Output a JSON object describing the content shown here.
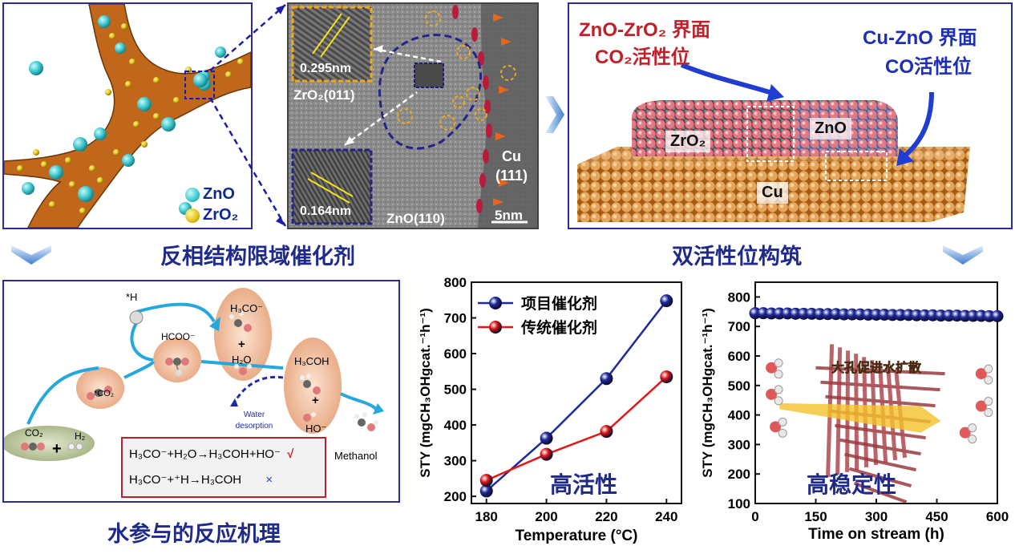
{
  "captions": {
    "reverse_phase": "反相结构限域催化剂",
    "dual_sites": "双活性位构筑",
    "mechanism": "水参与的反应机理"
  },
  "schematic": {
    "legend_zno": "ZnO",
    "legend_zro2": "ZrO₂"
  },
  "tem": {
    "d1": "0.295nm",
    "plane1": "ZrO₂(011)",
    "d2": "0.164nm",
    "plane2": "ZnO(110)",
    "cu_label": "Cu",
    "cu_plane": "(111)",
    "scale": "5nm"
  },
  "interface": {
    "znzr_title": "ZnO-ZrO₂ 界面",
    "znzr_site": "CO₂活性位",
    "cuzn_title": "Cu-ZnO 界面",
    "cuzn_site": "CO活性位",
    "label_zro2": "ZrO₂",
    "label_zno": "ZnO",
    "label_cu": "Cu"
  },
  "mechanism": {
    "h_star": "*H",
    "hcoo": "HCOO⁻",
    "h3co": "H₃CO⁻",
    "plus": "+",
    "h2o": "H₂O",
    "h3coh": "H₃COH",
    "ho": "HO⁻",
    "co2_star": "*CO₂",
    "water_desorption": "Water desorption",
    "co2": "CO₂",
    "h2": "H₂",
    "methanol": "Methanol",
    "eq1": "H₃CO⁻+H₂O→H₃COH+HO⁻",
    "eq1_mark": "√",
    "eq2": "H₃CO⁻+⁺H→H₃COH",
    "eq2_mark": "×"
  },
  "colors": {
    "frame": "#2b2b9a",
    "caption": "#1f2a8a",
    "series_project": "#1f2a9a",
    "series_traditional": "#e01818",
    "interface_red": "#c0202a",
    "interface_blue": "#1d2fb5"
  },
  "chart_data": [
    {
      "type": "line",
      "ylabel": "STY (mgCH₃OHgcat.⁻¹h⁻¹)",
      "xlabel": "Temperature (°C)",
      "annotation": "高活性",
      "x": [
        180,
        200,
        220,
        240
      ],
      "xticks": [
        "180",
        "200",
        "220",
        "240"
      ],
      "yticks": [
        "200",
        "300",
        "400",
        "500",
        "600",
        "700",
        "800"
      ],
      "xlim": [
        175,
        245
      ],
      "ylim": [
        180,
        800
      ],
      "legend_position": "top-left",
      "series": [
        {
          "name": "项目催化剂",
          "values": [
            215,
            363,
            530,
            748
          ],
          "color": "#1f2a9a"
        },
        {
          "name": "传统催化剂",
          "values": [
            245,
            318,
            382,
            535
          ],
          "color": "#e01818"
        }
      ]
    },
    {
      "type": "scatter",
      "ylabel": "STY (mgCH₃OHgcat.⁻¹h⁻¹)",
      "xlabel": "Time on stream (h)",
      "annotation": "高稳定性",
      "inset_label": "大孔促进水扩散",
      "x": [
        0,
        20,
        40,
        60,
        80,
        100,
        120,
        140,
        160,
        180,
        200,
        220,
        240,
        260,
        280,
        300,
        320,
        340,
        360,
        380,
        400,
        420,
        440,
        460,
        480,
        500,
        520,
        540,
        560,
        580,
        600
      ],
      "xticks": [
        "0",
        "150",
        "300",
        "450",
        "600"
      ],
      "yticks": [
        "100",
        "200",
        "300",
        "400",
        "500",
        "600",
        "700",
        "800"
      ],
      "xlim": [
        0,
        600
      ],
      "ylim": [
        100,
        850
      ],
      "series": [
        {
          "values": [
            745,
            745,
            744,
            744,
            744,
            743,
            743,
            743,
            742,
            742,
            742,
            741,
            741,
            741,
            740,
            740,
            740,
            739,
            739,
            739,
            738,
            738,
            738,
            737,
            737,
            737,
            736,
            736,
            736,
            735,
            735
          ],
          "color": "#1f2a9a"
        }
      ]
    }
  ]
}
